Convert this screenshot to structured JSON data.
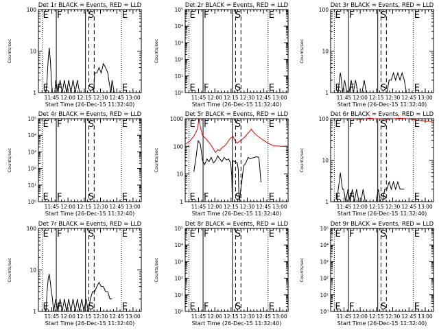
{
  "figure": {
    "start_time_label": "Start Time (26-Dec-15 11:32:40)",
    "ylabel": "Counts/sec",
    "x_ticks": [
      "11:45",
      "12:00",
      "12:15",
      "12:30",
      "12:45",
      "13:00"
    ],
    "marker_letters": [
      "E",
      "F",
      "S",
      "E"
    ],
    "colors": {
      "events": "#000000",
      "lld": "#dd0000"
    }
  },
  "chart_data": [
    {
      "type": "line",
      "title": "Det 1r BLACK = Events, RED = LLD",
      "yscale": "log",
      "ylim": [
        1,
        100
      ],
      "y_ticks": [
        "1",
        "10",
        "100"
      ],
      "xlim_minutes": [
        0,
        95
      ],
      "events": [
        [
          7,
          1
        ],
        [
          8,
          2
        ],
        [
          9,
          6
        ],
        [
          10,
          12
        ],
        [
          11,
          6
        ],
        [
          12,
          2
        ],
        [
          13,
          1
        ],
        [
          15,
          1
        ],
        [
          16,
          2
        ],
        [
          18,
          1
        ],
        [
          20,
          2
        ],
        [
          22,
          1
        ],
        [
          24,
          2
        ],
        [
          26,
          1
        ],
        [
          28,
          2
        ],
        [
          30,
          1
        ],
        [
          32,
          2
        ],
        [
          34,
          1
        ],
        [
          36,
          2
        ],
        [
          38,
          1
        ],
        [
          40,
          1
        ],
        [
          51,
          1
        ],
        [
          52,
          3
        ],
        [
          54,
          3
        ],
        [
          56,
          4
        ],
        [
          58,
          3
        ],
        [
          60,
          5
        ],
        [
          62,
          4
        ],
        [
          64,
          3
        ],
        [
          65,
          2
        ],
        [
          67,
          1
        ],
        [
          68,
          2
        ],
        [
          70,
          1
        ]
      ],
      "lld": [],
      "markers": [
        {
          "label": "E",
          "x": 3.5
        },
        {
          "label": "F",
          "x": 16.5
        },
        {
          "label": "S",
          "x": 45.5
        },
        {
          "label": "E",
          "x": 76.5
        }
      ],
      "solid_lines": [
        16.5,
        43.5
      ],
      "dashed_lines": [
        46.5,
        51.5
      ],
      "dotted_lines": [
        3.5,
        76.5
      ]
    },
    {
      "type": "line",
      "title": "Det 2r BLACK = Events, RED = LLD",
      "yscale": "log",
      "ylim": [
        1,
        100000
      ],
      "y_ticks": [
        "10⁰",
        "10¹",
        "10²",
        "10³",
        "10⁴",
        "10⁵"
      ],
      "xlim_minutes": [
        0,
        95
      ],
      "events": [],
      "lld": [],
      "markers": [
        {
          "label": "E",
          "x": 3.5
        },
        {
          "label": "F",
          "x": 16.5
        },
        {
          "label": "S",
          "x": 45.5
        },
        {
          "label": "E",
          "x": 76.5
        }
      ],
      "solid_lines": [
        16.5,
        43.5
      ],
      "dashed_lines": [
        46.5,
        51.5
      ],
      "dotted_lines": [
        3.5,
        76.5
      ]
    },
    {
      "type": "line",
      "title": "Det 3r BLACK = Events, RED = LLD",
      "yscale": "log",
      "ylim": [
        1,
        100
      ],
      "y_ticks": [
        "1",
        "10",
        "100"
      ],
      "xlim_minutes": [
        0,
        95
      ],
      "events": [
        [
          7,
          1
        ],
        [
          8,
          2
        ],
        [
          9,
          3
        ],
        [
          10,
          2
        ],
        [
          11,
          1
        ],
        [
          13,
          2
        ],
        [
          15,
          1
        ],
        [
          17,
          1
        ],
        [
          19,
          2
        ],
        [
          21,
          1
        ],
        [
          23,
          2
        ],
        [
          25,
          1
        ],
        [
          27,
          1
        ],
        [
          29,
          1
        ],
        [
          31,
          2
        ],
        [
          33,
          1
        ],
        [
          35,
          1
        ],
        [
          46,
          1
        ],
        [
          48,
          1
        ],
        [
          52,
          1
        ],
        [
          54,
          2
        ],
        [
          56,
          2
        ],
        [
          58,
          3
        ],
        [
          60,
          2
        ],
        [
          62,
          3
        ],
        [
          64,
          2
        ],
        [
          66,
          3
        ],
        [
          68,
          2
        ],
        [
          70,
          1
        ],
        [
          72,
          1
        ]
      ],
      "lld": [],
      "markers": [
        {
          "label": "E",
          "x": 3.5
        },
        {
          "label": "F",
          "x": 16.5
        },
        {
          "label": "S",
          "x": 45.5
        },
        {
          "label": "E",
          "x": 76.5
        }
      ],
      "solid_lines": [
        16.5,
        43.5
      ],
      "dashed_lines": [
        46.5,
        51.5
      ],
      "dotted_lines": [
        3.5,
        76.5
      ]
    },
    {
      "type": "line",
      "title": "Det 4r BLACK = Events, RED = LLD",
      "yscale": "log",
      "ylim": [
        1,
        100000
      ],
      "y_ticks": [
        "10⁰",
        "10¹",
        "10²",
        "10³",
        "10⁴",
        "10⁵"
      ],
      "xlim_minutes": [
        0,
        95
      ],
      "events": [],
      "lld": [],
      "markers": [
        {
          "label": "E",
          "x": 3.5
        },
        {
          "label": "F",
          "x": 16.5
        },
        {
          "label": "S",
          "x": 45.5
        },
        {
          "label": "E",
          "x": 76.5
        }
      ],
      "solid_lines": [
        16.5,
        43.5
      ],
      "dashed_lines": [
        46.5,
        51.5
      ],
      "dotted_lines": [
        3.5,
        76.5
      ]
    },
    {
      "type": "line",
      "title": "Det 5r BLACK = Events, RED = LLD",
      "yscale": "log",
      "ylim": [
        1,
        1000
      ],
      "y_ticks": [
        "1",
        "10",
        "100",
        "1000"
      ],
      "xlim_minutes": [
        0,
        95
      ],
      "events": [
        [
          8,
          12
        ],
        [
          10,
          40
        ],
        [
          12,
          160
        ],
        [
          14,
          120
        ],
        [
          16,
          30
        ],
        [
          18,
          22
        ],
        [
          20,
          35
        ],
        [
          22,
          28
        ],
        [
          24,
          40
        ],
        [
          26,
          25
        ],
        [
          28,
          30
        ],
        [
          30,
          45
        ],
        [
          32,
          35
        ],
        [
          34,
          28
        ],
        [
          36,
          40
        ],
        [
          38,
          32
        ],
        [
          40,
          35
        ],
        [
          42,
          25
        ],
        [
          43,
          8
        ],
        [
          43.5,
          1
        ],
        [
          44,
          30
        ],
        [
          46,
          28
        ],
        [
          48,
          25
        ],
        [
          49,
          15
        ],
        [
          49.5,
          2
        ],
        [
          50,
          1
        ],
        [
          54,
          20
        ],
        [
          56,
          25
        ],
        [
          58,
          40
        ],
        [
          60,
          35
        ],
        [
          62,
          38
        ],
        [
          64,
          40
        ],
        [
          66,
          42
        ],
        [
          68,
          40
        ],
        [
          69,
          15
        ],
        [
          70,
          5
        ]
      ],
      "lld": [
        [
          0,
          120
        ],
        [
          4,
          150
        ],
        [
          8,
          230
        ],
        [
          11,
          400
        ],
        [
          13,
          1000
        ],
        [
          14,
          500
        ],
        [
          16,
          250
        ],
        [
          20,
          170
        ],
        [
          24,
          110
        ],
        [
          26,
          80
        ],
        [
          28,
          60
        ],
        [
          30,
          75
        ],
        [
          32,
          70
        ],
        [
          34,
          90
        ],
        [
          36,
          100
        ],
        [
          38,
          120
        ],
        [
          40,
          160
        ],
        [
          42,
          200
        ],
        [
          44,
          230
        ],
        [
          46,
          160
        ],
        [
          48,
          130
        ],
        [
          50,
          150
        ],
        [
          52,
          170
        ],
        [
          54,
          200
        ],
        [
          56,
          240
        ],
        [
          58,
          300
        ],
        [
          60,
          360
        ],
        [
          61,
          420
        ],
        [
          62,
          370
        ],
        [
          64,
          300
        ],
        [
          66,
          250
        ],
        [
          70,
          190
        ],
        [
          74,
          150
        ],
        [
          78,
          120
        ],
        [
          82,
          105
        ],
        [
          88,
          100
        ],
        [
          95,
          100
        ]
      ],
      "markers": [
        {
          "label": "E",
          "x": 3.5
        },
        {
          "label": "F",
          "x": 16.5
        },
        {
          "label": "S",
          "x": 45.5
        },
        {
          "label": "E",
          "x": 76.5
        }
      ],
      "solid_lines": [
        16.5,
        43.5
      ],
      "dashed_lines": [
        46.5,
        51.5
      ],
      "dotted_lines": [
        3.5,
        76.5
      ]
    },
    {
      "type": "line",
      "title": "Det 6r BLACK = Events, RED = LLD",
      "yscale": "log",
      "ylim": [
        1,
        100
      ],
      "y_ticks": [
        "1",
        "10",
        "100"
      ],
      "xlim_minutes": [
        0,
        95
      ],
      "events": [
        [
          6,
          1
        ],
        [
          7,
          2
        ],
        [
          8,
          3
        ],
        [
          9,
          5
        ],
        [
          10,
          3
        ],
        [
          11,
          2
        ],
        [
          12,
          2
        ],
        [
          14,
          1
        ],
        [
          16,
          2
        ],
        [
          18,
          1
        ],
        [
          20,
          2
        ],
        [
          22,
          1
        ],
        [
          24,
          2
        ],
        [
          26,
          1
        ],
        [
          28,
          1
        ],
        [
          30,
          2
        ],
        [
          32,
          1
        ],
        [
          42,
          1
        ],
        [
          44,
          2
        ],
        [
          46,
          1
        ],
        [
          48,
          1
        ],
        [
          50,
          2
        ],
        [
          52,
          2
        ],
        [
          54,
          3
        ],
        [
          56,
          2
        ],
        [
          58,
          3
        ],
        [
          60,
          2
        ],
        [
          62,
          3
        ],
        [
          64,
          2
        ],
        [
          66,
          2
        ],
        [
          68,
          2
        ]
      ],
      "lld": [
        [
          20,
          100
        ],
        [
          24,
          98
        ],
        [
          28,
          95
        ],
        [
          32,
          100
        ],
        [
          36,
          104
        ],
        [
          40,
          100
        ],
        [
          46,
          100
        ],
        [
          52,
          96
        ],
        [
          58,
          100
        ],
        [
          64,
          103
        ],
        [
          70,
          100
        ],
        [
          76,
          96
        ],
        [
          82,
          90
        ],
        [
          88,
          88
        ],
        [
          94,
          85
        ]
      ],
      "markers": [
        {
          "label": "E",
          "x": 3.5
        },
        {
          "label": "F",
          "x": 16.5
        },
        {
          "label": "S",
          "x": 45.5
        },
        {
          "label": "E",
          "x": 76.5
        }
      ],
      "solid_lines": [
        16.5,
        43.5
      ],
      "dashed_lines": [
        46.5,
        51.5
      ],
      "dotted_lines": [
        3.5,
        76.5
      ]
    },
    {
      "type": "line",
      "title": "Det 7r BLACK = Events, RED = LLD",
      "yscale": "log",
      "ylim": [
        1,
        100
      ],
      "y_ticks": [
        "1",
        "10",
        "100"
      ],
      "xlim_minutes": [
        0,
        95
      ],
      "events": [
        [
          7,
          1
        ],
        [
          8,
          3
        ],
        [
          9,
          6
        ],
        [
          10,
          8
        ],
        [
          11,
          5
        ],
        [
          12,
          3
        ],
        [
          13,
          2
        ],
        [
          14,
          1
        ],
        [
          16,
          2
        ],
        [
          18,
          1
        ],
        [
          20,
          2
        ],
        [
          22,
          1
        ],
        [
          24,
          2
        ],
        [
          26,
          1
        ],
        [
          28,
          2
        ],
        [
          30,
          1
        ],
        [
          32,
          2
        ],
        [
          34,
          1
        ],
        [
          36,
          2
        ],
        [
          38,
          1
        ],
        [
          40,
          2
        ],
        [
          42,
          1
        ],
        [
          44,
          2
        ],
        [
          46,
          1
        ],
        [
          48,
          2
        ],
        [
          50,
          3
        ],
        [
          52,
          3
        ],
        [
          54,
          4
        ],
        [
          56,
          5
        ],
        [
          58,
          4
        ],
        [
          60,
          4
        ],
        [
          62,
          3
        ],
        [
          64,
          3
        ],
        [
          66,
          2
        ],
        [
          68,
          2
        ]
      ],
      "lld": [],
      "markers": [
        {
          "label": "E",
          "x": 3.5
        },
        {
          "label": "F",
          "x": 16.5
        },
        {
          "label": "S",
          "x": 45.5
        },
        {
          "label": "E",
          "x": 76.5
        }
      ],
      "solid_lines": [
        16.5,
        43.5
      ],
      "dashed_lines": [
        46.5,
        51.5
      ],
      "dotted_lines": [
        3.5,
        76.5
      ]
    },
    {
      "type": "line",
      "title": "Det 8r BLACK = Events, RED = LLD",
      "yscale": "log",
      "ylim": [
        1,
        100000
      ],
      "y_ticks": [
        "10⁰",
        "10¹",
        "10²",
        "10³",
        "10⁴",
        "10⁵"
      ],
      "xlim_minutes": [
        0,
        95
      ],
      "events": [],
      "lld": [],
      "markers": [
        {
          "label": "E",
          "x": 3.5
        },
        {
          "label": "F",
          "x": 16.5
        },
        {
          "label": "S",
          "x": 45.5
        },
        {
          "label": "E",
          "x": 76.5
        }
      ],
      "solid_lines": [
        16.5,
        43.5
      ],
      "dashed_lines": [
        46.5,
        51.5
      ],
      "dotted_lines": [
        3.5,
        76.5
      ]
    },
    {
      "type": "line",
      "title": "Det 9r BLACK = Events, RED = LLD",
      "yscale": "log",
      "ylim": [
        1,
        100000
      ],
      "y_ticks": [
        "10⁰",
        "10¹",
        "10²",
        "10³",
        "10⁴",
        "10⁵"
      ],
      "xlim_minutes": [
        0,
        95
      ],
      "events": [],
      "lld": [],
      "markers": [
        {
          "label": "E",
          "x": 3.5
        },
        {
          "label": "F",
          "x": 16.5
        },
        {
          "label": "S",
          "x": 45.5
        },
        {
          "label": "E",
          "x": 76.5
        }
      ],
      "solid_lines": [
        16.5,
        43.5
      ],
      "dashed_lines": [
        46.5,
        51.5
      ],
      "dotted_lines": [
        3.5,
        76.5
      ]
    }
  ]
}
